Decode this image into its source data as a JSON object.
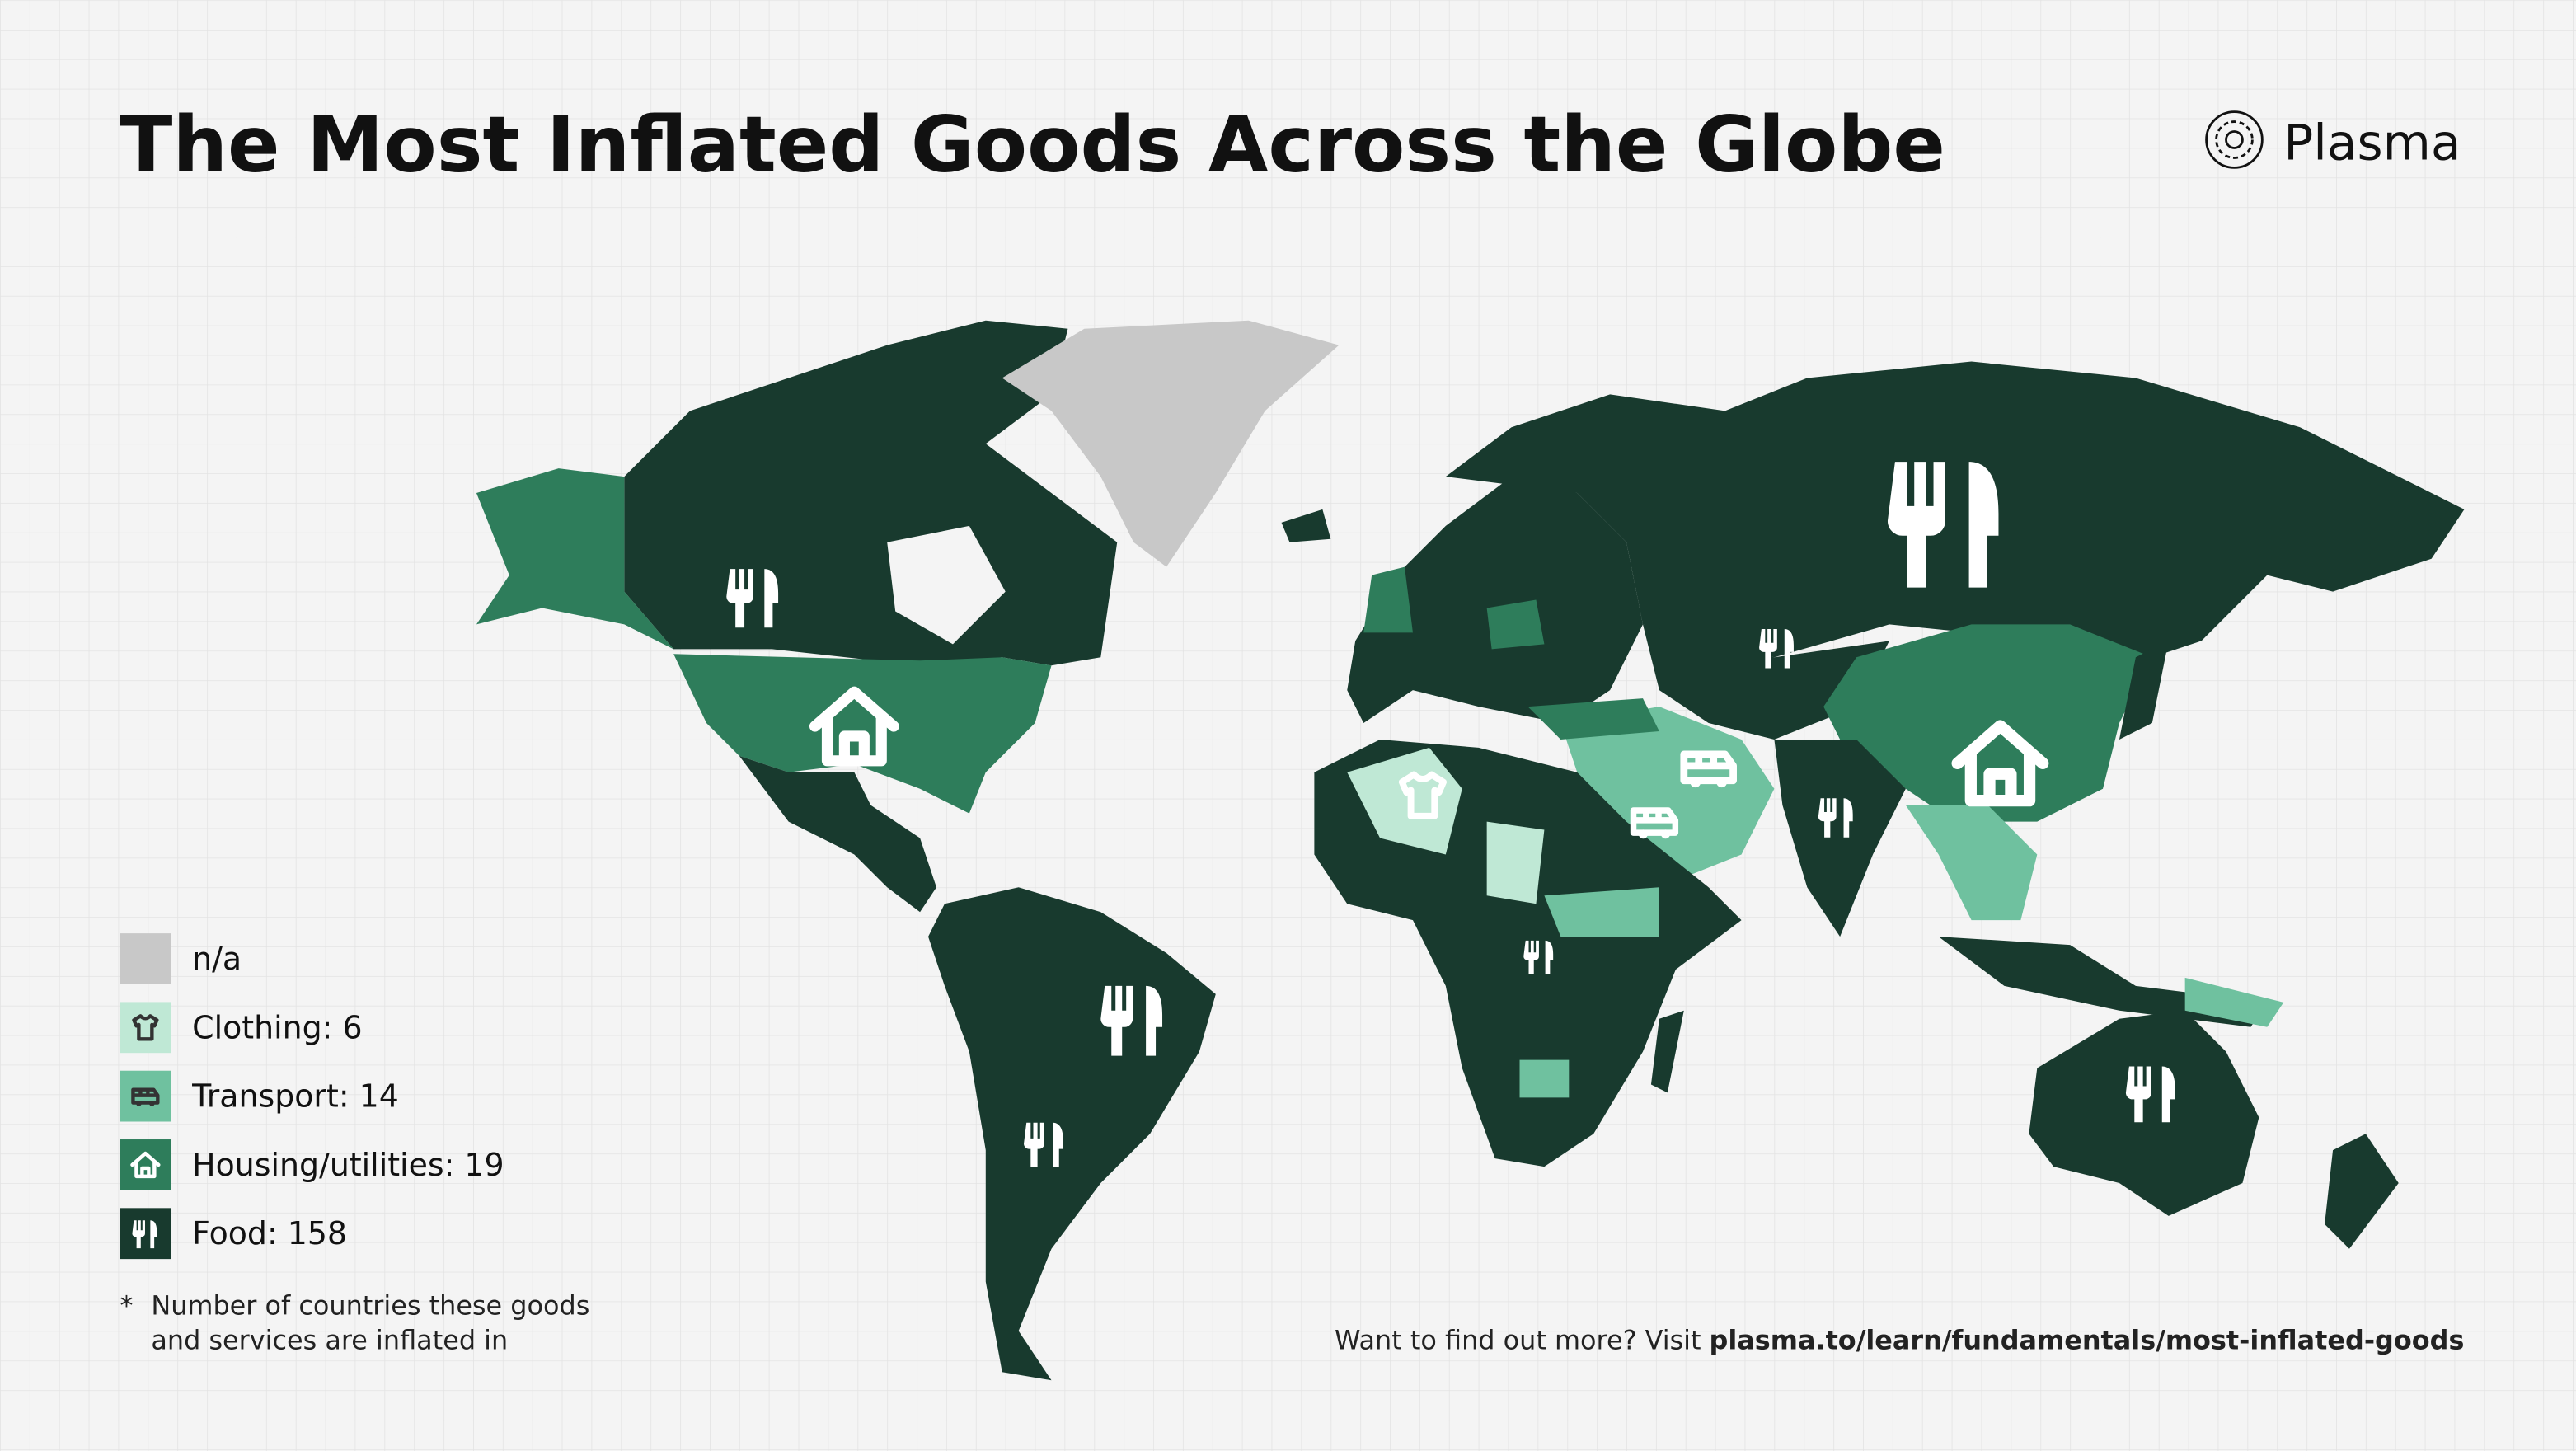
{
  "header": {
    "title": "The Most Inflated Goods Across the Globe",
    "logo": "Plasma"
  },
  "legend": {
    "items": [
      {
        "label": "n/a"
      },
      {
        "label": "Clothing: 6"
      },
      {
        "label": "Transport: 14"
      },
      {
        "label": "Housing/utilities: 19"
      },
      {
        "label": "Food: 158"
      }
    ]
  },
  "footnote": {
    "marker": "*",
    "lines": [
      "Number of countries these goods",
      "and services are inflated in"
    ]
  },
  "footer": {
    "prefix": "Want to find out more? Visit",
    "link": "plasma.to/learn/fundamentals/most-inflated-goods"
  }
}
